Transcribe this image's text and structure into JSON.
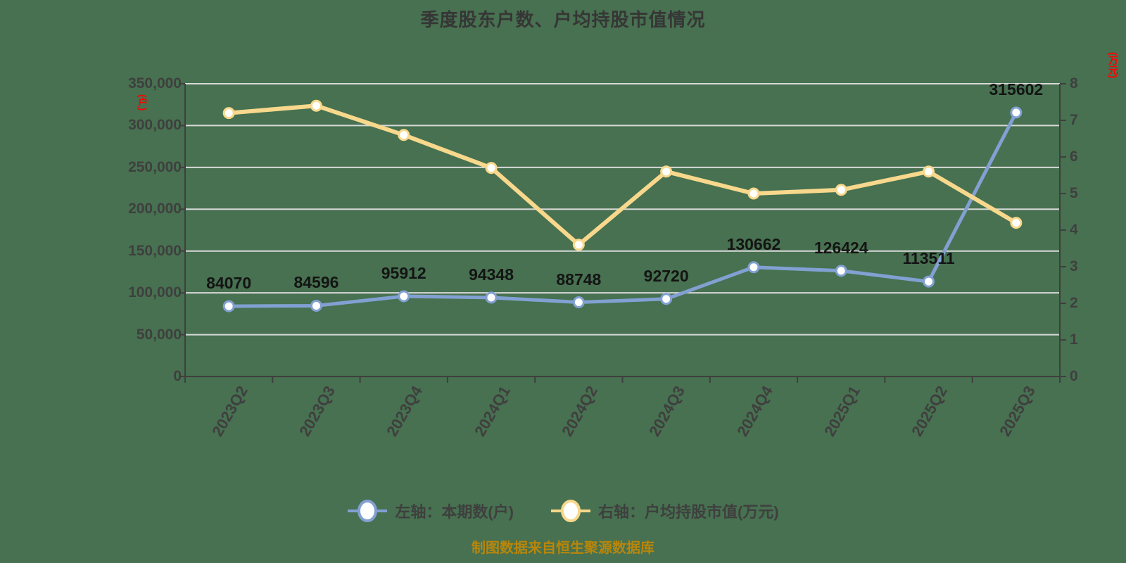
{
  "title": "季度股东户数、户均持股市值情况",
  "footer": "制图数据来自恒生聚源数据库",
  "colors": {
    "background": "#477150",
    "grid": "#D9D9D9",
    "axis": "#3F3F3F",
    "tick": "#3F3F3F",
    "dlabel": "#141414",
    "title": "#363636",
    "unit": "#FF0000",
    "footer": "#B8860B"
  },
  "chart_data": {
    "type": "line",
    "title": "季度股东户数、户均持股市值情况",
    "categories": [
      "2023Q2",
      "2023Q3",
      "2023Q4",
      "2024Q1",
      "2024Q2",
      "2024Q3",
      "2024Q4",
      "2025Q1",
      "2025Q2",
      "2025Q3"
    ],
    "series": [
      {
        "name": "左轴：本期数(户)",
        "yaxis": "left",
        "color": "#82A0D2",
        "marker_fill": "#FFFFFF",
        "line_width": 5,
        "data_labels": true,
        "values": [
          84070,
          84596,
          95912,
          94348,
          88748,
          92720,
          130662,
          126424,
          113511,
          315602
        ]
      },
      {
        "name": "右轴：户均持股市值(万元)",
        "yaxis": "right",
        "color": "#F8D88C",
        "marker_fill": "#FFFFFF",
        "line_width": 6,
        "data_labels": false,
        "values": [
          7.2,
          7.4,
          6.6,
          5.7,
          3.6,
          5.6,
          5.0,
          5.1,
          5.6,
          4.2
        ]
      }
    ],
    "left_axis": {
      "unit": "(户)",
      "min": 0,
      "max": 350000,
      "step": 50000,
      "tick_labels": [
        "0",
        "50,000",
        "100,000",
        "150,000",
        "200,000",
        "250,000",
        "300,000",
        "350,000"
      ]
    },
    "right_axis": {
      "unit": "(万元)",
      "min": 0,
      "max": 8,
      "step": 1,
      "tick_labels": [
        "0",
        "1",
        "2",
        "3",
        "4",
        "5",
        "6",
        "7",
        "8"
      ]
    },
    "grid": true,
    "legend_position": "bottom"
  }
}
